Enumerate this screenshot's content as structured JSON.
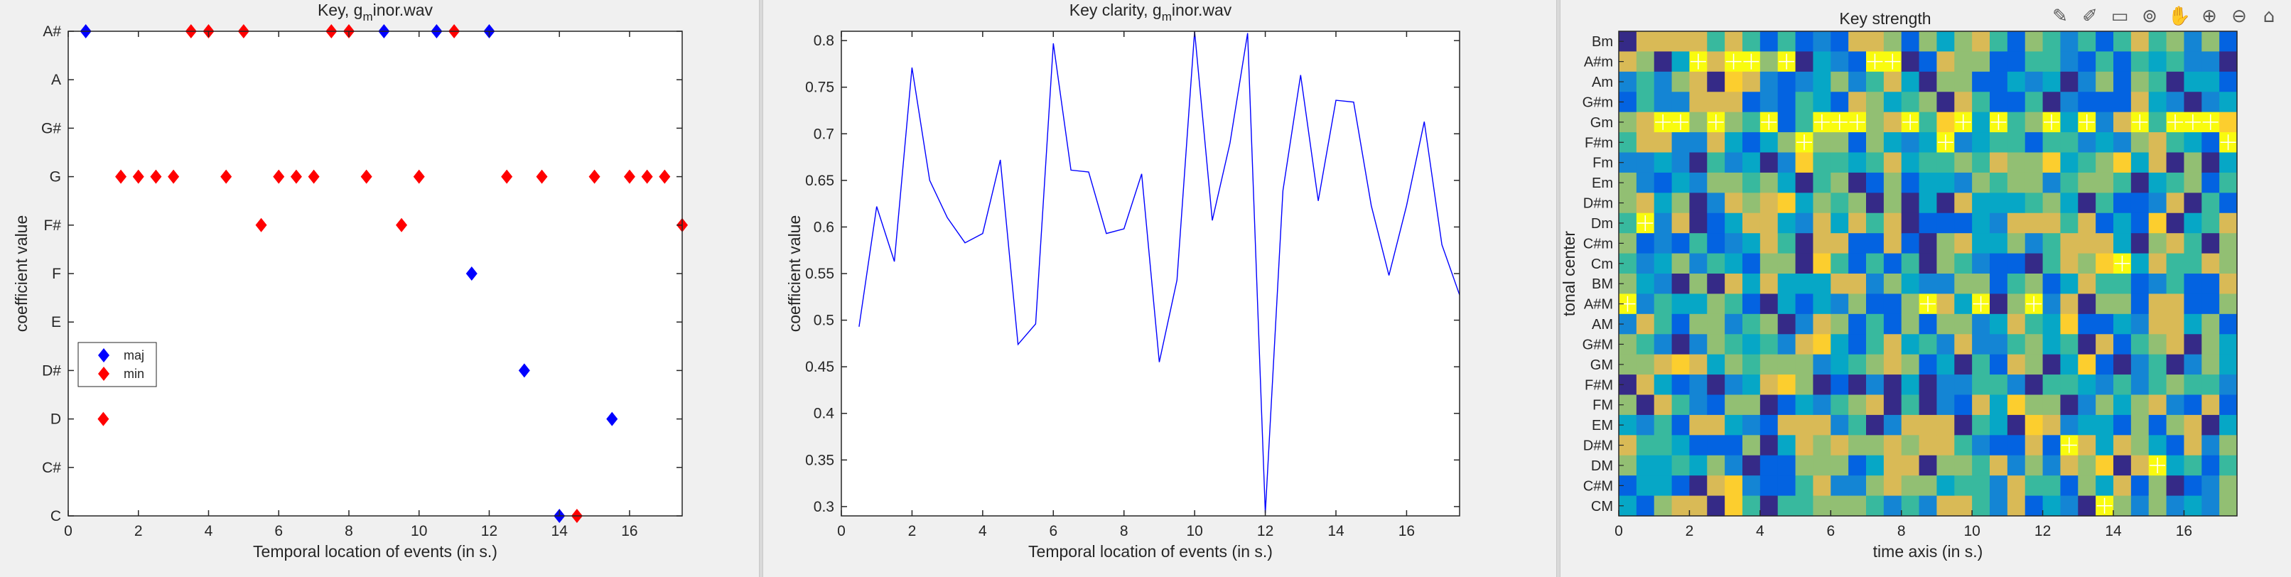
{
  "chart_data": [
    {
      "type": "scatter",
      "title": "Key, g",
      "title_sub": "m",
      "title_rest": "inor.wav",
      "xlabel": "Temporal location of events (in s.)",
      "ylabel": "coefficient value",
      "xlim": [
        0,
        17.5
      ],
      "xticks": [
        0,
        2,
        4,
        6,
        8,
        10,
        12,
        14,
        16
      ],
      "ylim": [
        0,
        10
      ],
      "yticks": [
        0,
        1,
        2,
        3,
        4,
        5,
        6,
        7,
        8,
        9,
        10
      ],
      "ytick_labels": [
        "C",
        "C#",
        "D",
        "D#",
        "E",
        "F",
        "F#",
        "G",
        "G#",
        "A",
        "A#"
      ],
      "legend": {
        "placement": "left",
        "entries": [
          "maj",
          "min"
        ]
      },
      "series": [
        {
          "name": "maj",
          "color": "#0000ff",
          "marker": "diamond",
          "points": [
            [
              0.5,
              10
            ],
            [
              9,
              10
            ],
            [
              10.5,
              10
            ],
            [
              12,
              10
            ],
            [
              11.5,
              5
            ],
            [
              13,
              3
            ],
            [
              14,
              0
            ],
            [
              15.5,
              2
            ]
          ]
        },
        {
          "name": "min",
          "color": "#ff0000",
          "marker": "diamond",
          "points": [
            [
              1,
              2
            ],
            [
              1.5,
              7
            ],
            [
              2,
              7
            ],
            [
              2.5,
              7
            ],
            [
              3,
              7
            ],
            [
              3.5,
              10
            ],
            [
              4,
              10
            ],
            [
              4.5,
              7
            ],
            [
              5,
              10
            ],
            [
              5.5,
              6
            ],
            [
              6,
              7
            ],
            [
              6.5,
              7
            ],
            [
              7,
              7
            ],
            [
              7.5,
              10
            ],
            [
              8,
              10
            ],
            [
              8.5,
              7
            ],
            [
              9.5,
              6
            ],
            [
              10,
              7
            ],
            [
              11,
              10
            ],
            [
              12.5,
              7
            ],
            [
              13.5,
              7
            ],
            [
              14.5,
              0
            ],
            [
              15,
              7
            ],
            [
              16,
              7
            ],
            [
              16.5,
              7
            ],
            [
              17,
              7
            ],
            [
              17.5,
              6
            ]
          ]
        }
      ]
    },
    {
      "type": "line",
      "title": "Key clarity, g",
      "title_sub": "m",
      "title_rest": "inor.wav",
      "xlabel": "Temporal location of events (in s.)",
      "ylabel": "coefficient value",
      "xlim": [
        0,
        17.5
      ],
      "xticks": [
        0,
        2,
        4,
        6,
        8,
        10,
        12,
        14,
        16
      ],
      "ylim": [
        0.29,
        0.81
      ],
      "yticks": [
        0.3,
        0.35,
        0.4,
        0.45,
        0.5,
        0.55,
        0.6,
        0.65,
        0.7,
        0.75,
        0.8
      ],
      "ytick_labels": [
        "0.3",
        "0.35",
        "0.4",
        "0.45",
        "0.5",
        "0.55",
        "0.6",
        "0.65",
        "0.7",
        "0.75",
        "0.8"
      ],
      "series": [
        {
          "color": "#0000ff",
          "x": [
            0.5,
            1,
            1.5,
            2,
            2.5,
            3,
            3.5,
            4,
            4.5,
            5,
            5.5,
            6,
            6.5,
            7,
            7.5,
            8,
            8.5,
            9,
            9.5,
            10,
            10.5,
            11,
            11.5,
            12,
            12.5,
            13,
            13.5,
            14,
            14.5,
            15,
            15.5,
            16,
            16.5,
            17,
            17.5
          ],
          "y": [
            0.493,
            0.622,
            0.563,
            0.771,
            0.65,
            0.61,
            0.583,
            0.593,
            0.672,
            0.474,
            0.496,
            0.797,
            0.661,
            0.659,
            0.593,
            0.598,
            0.657,
            0.455,
            0.543,
            0.81,
            0.607,
            0.69,
            0.808,
            0.293,
            0.639,
            0.763,
            0.628,
            0.736,
            0.734,
            0.623,
            0.548,
            0.623,
            0.713,
            0.581,
            0.527
          ]
        }
      ]
    },
    {
      "type": "heatmap",
      "title": "Key strength",
      "xlabel": "time axis (in s.)",
      "ylabel": "tonal center",
      "xlim": [
        0,
        17.5
      ],
      "xticks": [
        0,
        2,
        4,
        6,
        8,
        10,
        12,
        14,
        16
      ],
      "ytick_labels": [
        "Bm",
        "A#m",
        "Am",
        "G#m",
        "Gm",
        "F#m",
        "Fm",
        "Em",
        "D#m",
        "Dm",
        "C#m",
        "Cm",
        "BM",
        "A#M",
        "AM",
        "G#M",
        "GM",
        "F#M",
        "FM",
        "EM",
        "D#M",
        "DM",
        "C#M",
        "CM"
      ],
      "colormap": [
        "#352a87",
        "#0363e1",
        "#1485d4",
        "#06a7c6",
        "#38b99e",
        "#92bf73",
        "#d9ba56",
        "#fcce2e",
        "#f9fb0e"
      ],
      "marker_color": "#ffffff",
      "maxima": [
        [
          0.5,
          13
        ],
        [
          1,
          9
        ],
        [
          1.5,
          4
        ],
        [
          2,
          4
        ],
        [
          2.5,
          1
        ],
        [
          3,
          4
        ],
        [
          3.5,
          1
        ],
        [
          4,
          1
        ],
        [
          4.5,
          4
        ],
        [
          5,
          1
        ],
        [
          5.5,
          5
        ],
        [
          6,
          4
        ],
        [
          6.5,
          4
        ],
        [
          7,
          4
        ],
        [
          7.5,
          1
        ],
        [
          8,
          1
        ],
        [
          8.5,
          4
        ],
        [
          9,
          13
        ],
        [
          9.5,
          5
        ],
        [
          10,
          4
        ],
        [
          10.5,
          13
        ],
        [
          11,
          4
        ],
        [
          12,
          13
        ],
        [
          12.5,
          4
        ],
        [
          13,
          20
        ],
        [
          13.5,
          4
        ],
        [
          14,
          23
        ],
        [
          14.5,
          11
        ],
        [
          15,
          4
        ],
        [
          15.5,
          21
        ],
        [
          16,
          4
        ],
        [
          16.5,
          4
        ],
        [
          17,
          4
        ],
        [
          17.5,
          5
        ]
      ]
    }
  ],
  "toolbar": [
    "✎",
    "✐",
    "▭",
    "⊚",
    "✋",
    "⊕",
    "⊖",
    "⌂"
  ]
}
